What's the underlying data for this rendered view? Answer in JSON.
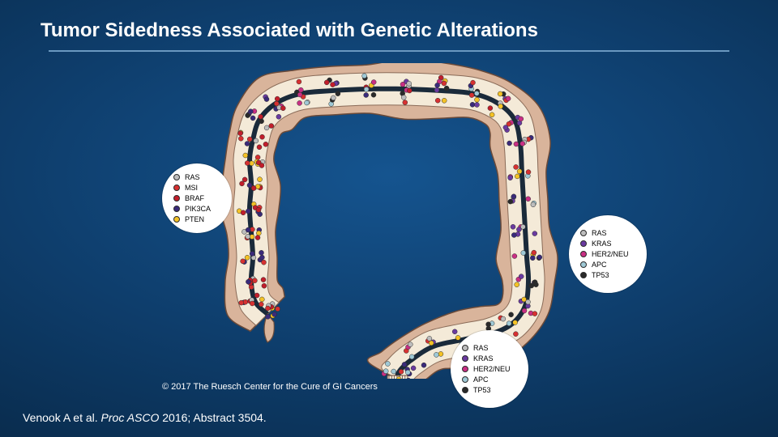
{
  "title": "Tumor Sidedness Associated with Genetic Alterations",
  "diagram_type": "infographic",
  "colon": {
    "outer_fill": "#d9b49b",
    "outer_stroke": "#6b4a39",
    "inner_fill": "#f4ead8",
    "inner_stroke": "#8a6b58",
    "lumen_fill": "#1a2a3a"
  },
  "mutation_colors": {
    "RAS": "#bdbdbd",
    "MSI": "#d73131",
    "BRAF": "#c21e2b",
    "PIK3CA": "#3a2a7a",
    "PTEN": "#f4c226",
    "KRAS": "#6a3aa0",
    "HER2/NEU": "#c92f84",
    "APC": "#9fc9d6",
    "TP53": "#2a2a2a"
  },
  "dot_radius": 3.0,
  "dot_stroke": "#2b2b2b",
  "legends": {
    "left": {
      "items": [
        {
          "label": "RAS",
          "color": "#bdbdbd"
        },
        {
          "label": "MSI",
          "color": "#d73131"
        },
        {
          "label": "BRAF",
          "color": "#c21e2b"
        },
        {
          "label": "PIK3CA",
          "color": "#3a2a7a"
        },
        {
          "label": "PTEN",
          "color": "#f4c226"
        }
      ]
    },
    "right": {
      "items": [
        {
          "label": "RAS",
          "color": "#bdbdbd"
        },
        {
          "label": "KRAS",
          "color": "#6a3aa0"
        },
        {
          "label": "HER2/NEU",
          "color": "#c92f84"
        },
        {
          "label": "APC",
          "color": "#9fc9d6"
        },
        {
          "label": "TP53",
          "color": "#2a2a2a"
        }
      ]
    },
    "bottom": {
      "items": [
        {
          "label": "RAS",
          "color": "#bdbdbd"
        },
        {
          "label": "KRAS",
          "color": "#6a3aa0"
        },
        {
          "label": "HER2/NEU",
          "color": "#c92f84"
        },
        {
          "label": "APC",
          "color": "#9fc9d6"
        },
        {
          "label": "TP53",
          "color": "#2a2a2a"
        }
      ]
    }
  },
  "dot_distribution": {
    "ascending_palette": [
      "#d73131",
      "#c21e2b",
      "#3a2a7a",
      "#f4c226",
      "#bdbdbd"
    ],
    "transverse_palette": [
      "#d73131",
      "#c21e2b",
      "#3a2a7a",
      "#f4c226",
      "#bdbdbd",
      "#6a3aa0",
      "#c92f84",
      "#9fc9d6",
      "#2a2a2a"
    ],
    "descending_palette": [
      "#bdbdbd",
      "#6a3aa0",
      "#c92f84",
      "#9fc9d6",
      "#2a2a2a",
      "#f4c226",
      "#d73131",
      "#3a2a7a"
    ],
    "sigmoid_palette": [
      "#bdbdbd",
      "#6a3aa0",
      "#c92f84",
      "#9fc9d6",
      "#2a2a2a",
      "#f4c226",
      "#d73131",
      "#3a2a7a"
    ]
  },
  "copyright": "© 2017 The Ruesch Center for the Cure of GI Cancers",
  "citation_prefix": "Venook A et al. ",
  "citation_ital": "Proc ASCO",
  "citation_suffix": " 2016; Abstract 3504."
}
